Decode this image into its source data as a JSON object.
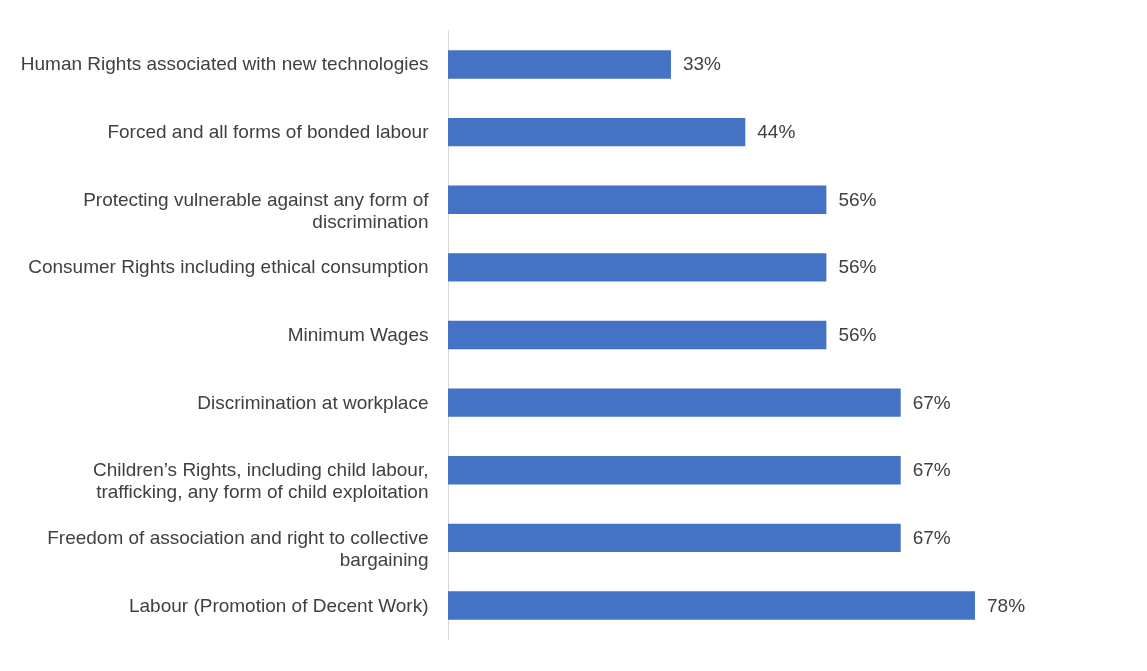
{
  "chart_data": {
    "type": "bar",
    "orientation": "horizontal",
    "data_labels": true,
    "color": "#4472c4",
    "categories": [
      "Human Rights associated with new technologies",
      "Forced and all forms of bonded labour",
      "Protecting vulnerable against any form of discrimination",
      "Consumer Rights including ethical consumption",
      "Minimum Wages",
      "Discrimination at workplace",
      "Children’s Rights, including child labour, trafficking, any form of child exploitation",
      "Freedom of association and right to collective bargaining",
      "Labour (Promotion of Decent Work)"
    ],
    "values": [
      33,
      44,
      56,
      56,
      56,
      67,
      67,
      67,
      78
    ],
    "value_labels": [
      "33%",
      "44%",
      "56%",
      "56%",
      "56%",
      "67%",
      "67%",
      "67%",
      "78%"
    ]
  }
}
